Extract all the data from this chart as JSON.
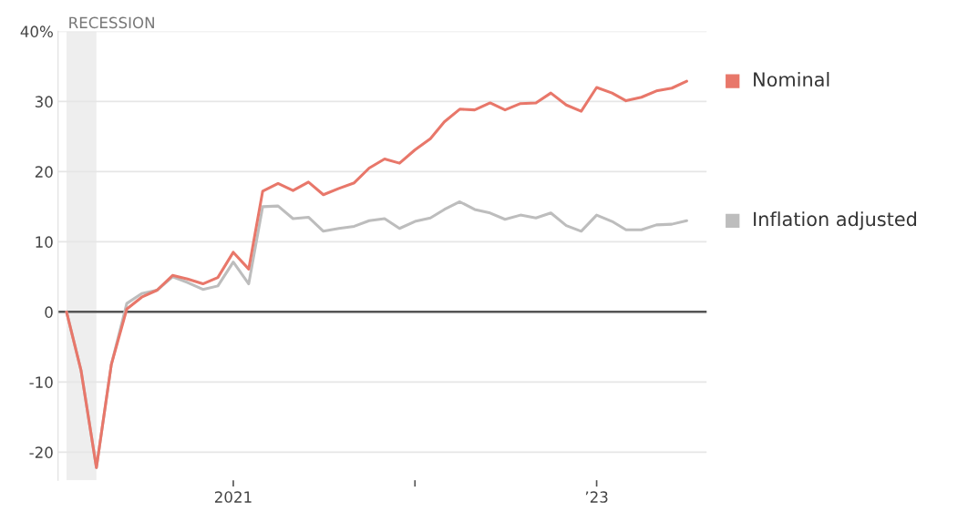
{
  "chart_data": {
    "type": "line",
    "x": [
      "2020-02",
      "2020-03",
      "2020-04",
      "2020-05",
      "2020-06",
      "2020-07",
      "2020-08",
      "2020-09",
      "2020-10",
      "2020-11",
      "2020-12",
      "2021-01",
      "2021-02",
      "2021-03",
      "2021-04",
      "2021-05",
      "2021-06",
      "2021-07",
      "2021-08",
      "2021-09",
      "2021-10",
      "2021-11",
      "2021-12",
      "2022-01",
      "2022-02",
      "2022-03",
      "2022-04",
      "2022-05",
      "2022-06",
      "2022-07",
      "2022-08",
      "2022-09",
      "2022-10",
      "2022-11",
      "2022-12",
      "2023-01",
      "2023-02",
      "2023-03",
      "2023-04",
      "2023-05",
      "2023-06",
      "2023-07"
    ],
    "series": [
      {
        "name": "Nominal",
        "color": "#e8776a",
        "values": [
          0,
          -8.3,
          -22.2,
          -7.5,
          0.4,
          2.1,
          3.1,
          5.2,
          4.7,
          4.0,
          4.9,
          8.5,
          6.1,
          17.2,
          18.3,
          17.3,
          18.5,
          16.7,
          17.6,
          18.4,
          20.5,
          21.8,
          21.2,
          23.1,
          24.7,
          27.1,
          28.9,
          28.8,
          29.8,
          28.8,
          29.7,
          29.8,
          31.2,
          29.5,
          28.6,
          32.0,
          31.2,
          30.1,
          30.6,
          31.5,
          31.9,
          32.9
        ]
      },
      {
        "name": "Inflation adjusted",
        "color": "#bdbdbd",
        "values": [
          0,
          -8.3,
          -22.2,
          -7.5,
          1.2,
          2.6,
          3.1,
          5.0,
          4.2,
          3.2,
          3.7,
          7.1,
          4.0,
          15.0,
          15.1,
          13.3,
          13.5,
          11.5,
          11.9,
          12.2,
          13.0,
          13.3,
          11.9,
          12.9,
          13.4,
          14.6,
          15.7,
          14.6,
          14.1,
          13.2,
          13.8,
          13.4,
          14.1,
          12.3,
          11.5,
          13.8,
          12.9,
          11.7,
          11.7,
          12.4,
          12.5,
          13.0
        ]
      }
    ],
    "xlim": [
      "2020-01-15",
      "2023-08-10"
    ],
    "xticks": [
      {
        "value": "2021-01",
        "label": "2021"
      },
      {
        "value": "2022-01",
        "label": null
      },
      {
        "value": "2023-01",
        "label": "’23"
      }
    ],
    "ylim": [
      -24,
      40
    ],
    "yticks": [
      -20,
      -10,
      0,
      10,
      20,
      30,
      {
        "value": 40,
        "label": "40%"
      }
    ],
    "ref_lines": [
      {
        "axis": "y",
        "value": 0,
        "color": "#555555"
      }
    ],
    "bands": [
      {
        "axis": "x",
        "from": "2020-02",
        "to": "2020-04",
        "label": "RECESSION",
        "color": "#eeeeee"
      }
    ],
    "grid": "y",
    "legend": "right",
    "marker": "none",
    "line_style": "solid"
  }
}
